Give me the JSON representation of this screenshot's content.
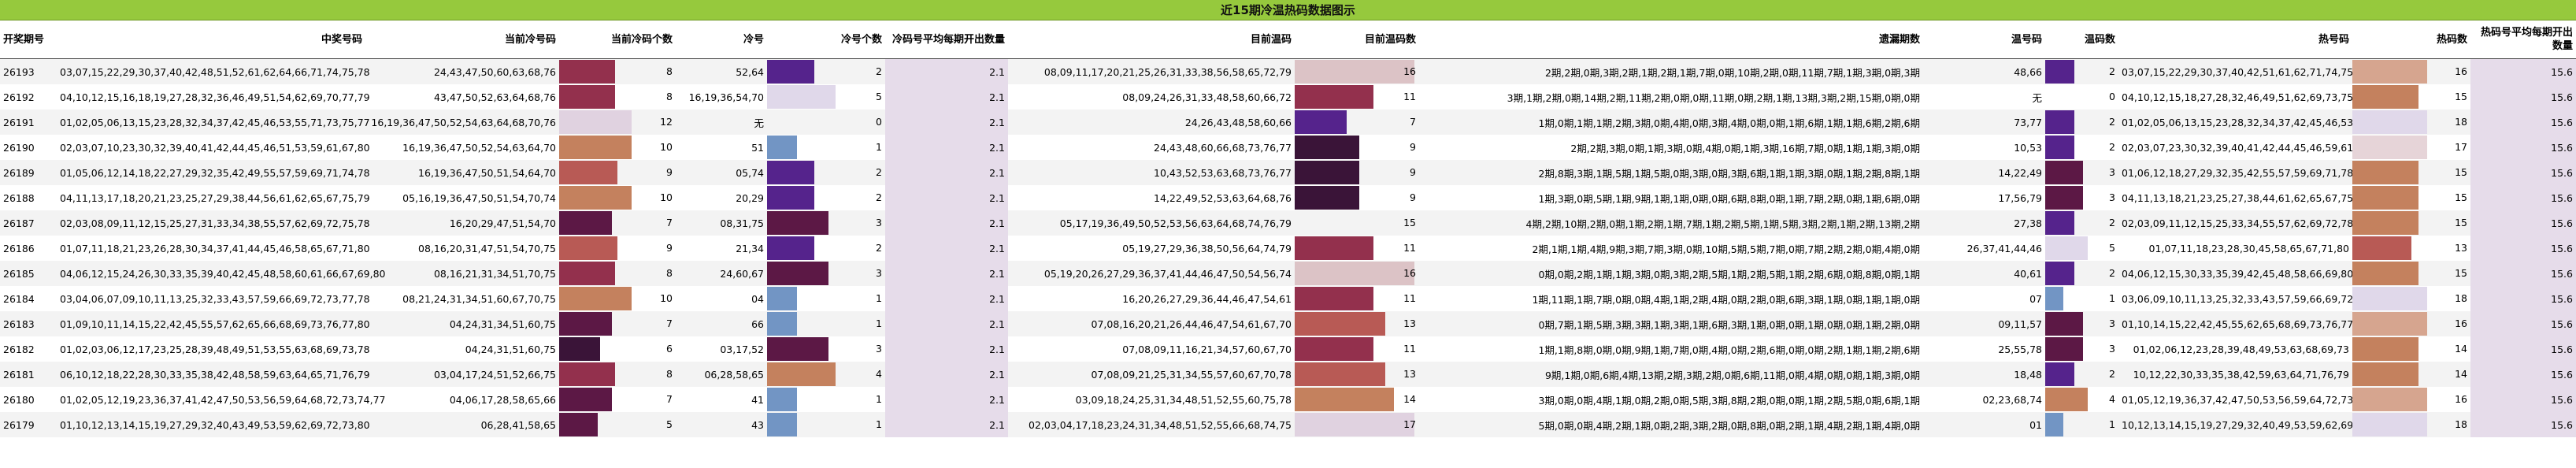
{
  "title": "近15期冷温热码数据图示",
  "headers": [
    "开奖期号",
    "中奖号码",
    "当前冷号码",
    "当前冷码个数",
    "冷号",
    "冷号个数",
    "冷码号平均每期开出数量",
    "目前温码",
    "目前温码数",
    "遗漏期数",
    "温号码",
    "温码数",
    "热号码",
    "热码数",
    "热码号平均每期开出数量"
  ],
  "colors": {
    "title_bg": "#96c93d",
    "avg_bg": "#e6dcea",
    "cold_count_scale": {
      "5": "#5c1845",
      "6": "#3a1438",
      "7": "#5c1845",
      "8": "#93304d",
      "9": "#b85a55",
      "10": "#c4815e",
      "12": "#e0d2e0"
    },
    "cold_num_scale": {
      "0": "#ffffff",
      "1": "#7295c4",
      "2": "#55238c",
      "3": "#5c1845",
      "4": "#c4815e",
      "5": "#e0d8ea"
    },
    "warm_count_scale": {
      "7": "#55238c",
      "8": "#5c1845",
      "9": "#3a1438",
      "10": "#55238c",
      "11": "#93304d",
      "13": "#b85a55",
      "14": "#c4815e",
      "16": "#dcc3c6",
      "17": "#e0d2e0"
    },
    "warm_num_scale": {
      "0": "#ffffff",
      "1": "#7295c4",
      "2": "#55238c",
      "3": "#5c1845",
      "4": "#c4815e",
      "5": "#e0d8ea"
    },
    "hot_count_scale": {
      "13": "#b85a55",
      "14": "#c4815e",
      "15": "#c4815e",
      "16": "#d6a58f",
      "17": "#e6d4d8",
      "18": "#e0d8ea"
    }
  },
  "rows": [
    {
      "period": "26193",
      "winning": "03,07,15,22,29,30,37,40,42,48,51,52,61,62,64,66,71,74,75,78",
      "cold_codes": "24,43,47,50,60,63,68,76",
      "cold_count": 8,
      "cold_nums": "52,64",
      "cold_num_count": 2,
      "cold_avg": "2.1",
      "warm_codes": "08,09,11,17,20,21,25,26,31,33,38,56,58,65,72,79",
      "warm_count": 16,
      "miss": "2期,2期,0期,3期,2期,1期,2期,1期,7期,0期,10期,2期,0期,11期,7期,1期,3期,0期,3期",
      "warm_nums": "48,66",
      "warm_num_count": 2,
      "hot_codes": "03,07,15,22,29,30,37,40,42,51,61,62,71,74,75,78",
      "hot_count": 16,
      "hot_avg": "15.6"
    },
    {
      "period": "26192",
      "winning": "04,10,12,15,16,18,19,27,28,32,36,46,49,51,54,62,69,70,77,79",
      "cold_codes": "43,47,50,52,63,64,68,76",
      "cold_count": 8,
      "cold_nums": "16,19,36,54,70",
      "cold_num_count": 5,
      "cold_avg": "2.1",
      "warm_codes": "08,09,24,26,31,33,48,58,60,66,72",
      "warm_count": 11,
      "miss": "3期,1期,2期,0期,14期,2期,11期,2期,0期,0期,11期,0期,2期,1期,13期,3期,2期,15期,0期,0期",
      "warm_nums": "无",
      "warm_num_count": 0,
      "hot_codes": "04,10,12,15,18,27,28,32,46,49,51,62,69,73,75",
      "hot_count": 15,
      "hot_avg": "15.6"
    },
    {
      "period": "26191",
      "winning": "01,02,05,06,13,15,23,28,32,34,37,42,45,46,53,55,71,73,75,77",
      "cold_codes": "16,19,36,47,50,52,54,63,64,68,70,76",
      "cold_count": 12,
      "cold_nums": "无",
      "cold_num_count": 0,
      "cold_avg": "2.1",
      "warm_codes": "24,26,43,48,58,60,66",
      "warm_count": 7,
      "miss": "1期,0期,1期,1期,2期,3期,0期,4期,0期,3期,4期,0期,0期,1期,6期,1期,1期,6期,2期,6期",
      "warm_nums": "73,77",
      "warm_num_count": 2,
      "hot_codes": "01,02,05,06,13,15,23,28,32,34,37,42,45,46,53,55,71,75",
      "hot_count": 18,
      "hot_avg": "15.6"
    },
    {
      "period": "26190",
      "winning": "02,03,07,10,23,30,32,39,40,41,42,44,45,46,51,53,59,61,67,80",
      "cold_codes": "16,19,36,47,50,52,54,63,64,70",
      "cold_count": 10,
      "cold_nums": "51",
      "cold_num_count": 1,
      "cold_avg": "2.1",
      "warm_codes": "24,43,48,60,66,68,73,76,77",
      "warm_count": 9,
      "miss": "2期,2期,3期,0期,1期,3期,0期,4期,0期,1期,3期,16期,7期,0期,1期,1期,3期,0期",
      "warm_nums": "10,53",
      "warm_num_count": 2,
      "hot_codes": "02,03,07,23,30,32,39,40,41,42,44,45,46,59,61,67,80",
      "hot_count": 17,
      "hot_avg": "15.6"
    },
    {
      "period": "26189",
      "winning": "01,05,06,12,14,18,22,27,29,32,35,42,49,55,57,59,69,71,74,78",
      "cold_codes": "16,19,36,47,50,51,54,64,70",
      "cold_count": 9,
      "cold_nums": "05,74",
      "cold_num_count": 2,
      "cold_avg": "2.1",
      "warm_codes": "10,43,52,53,63,68,73,76,77",
      "warm_count": 9,
      "miss": "2期,8期,3期,1期,5期,1期,5期,0期,3期,0期,3期,6期,1期,1期,3期,0期,1期,2期,8期,1期",
      "warm_nums": "14,22,49",
      "warm_num_count": 3,
      "hot_codes": "01,06,12,18,27,29,32,35,42,55,57,59,69,71,78",
      "hot_count": 15,
      "hot_avg": "15.6"
    },
    {
      "period": "26188",
      "winning": "04,11,13,17,18,20,21,23,25,27,29,38,44,56,61,62,65,67,75,79",
      "cold_codes": "05,16,19,36,47,50,51,54,70,74",
      "cold_count": 10,
      "cold_nums": "20,29",
      "cold_num_count": 2,
      "cold_avg": "2.1",
      "warm_codes": "14,22,49,52,53,63,64,68,76",
      "warm_count": 9,
      "miss": "1期,3期,0期,5期,1期,9期,1期,1期,0期,0期,6期,8期,0期,1期,7期,2期,0期,1期,6期,0期",
      "warm_nums": "17,56,79",
      "warm_num_count": 3,
      "hot_codes": "04,11,13,18,21,23,25,27,38,44,61,62,65,67,75",
      "hot_count": 15,
      "hot_avg": "15.6"
    },
    {
      "period": "26187",
      "winning": "02,03,08,09,11,12,15,25,27,31,33,34,38,55,57,62,69,72,75,78",
      "cold_codes": "16,20,29,47,51,54,70",
      "cold_count": 7,
      "cold_nums": "08,31,75",
      "cold_num_count": 3,
      "cold_avg": "2.1",
      "warm_codes": "05,17,19,36,49,50,52,53,56,63,64,68,74,76,79",
      "warm_count": 15,
      "miss": "4期,2期,10期,2期,0期,1期,2期,1期,7期,1期,2期,5期,1期,5期,3期,2期,1期,2期,13期,2期",
      "warm_nums": "27,38",
      "warm_num_count": 2,
      "hot_codes": "02,03,09,11,12,15,25,33,34,55,57,62,69,72,78",
      "hot_count": 15,
      "hot_avg": "15.6"
    },
    {
      "period": "26186",
      "winning": "01,07,11,18,21,23,26,28,30,34,37,41,44,45,46,58,65,67,71,80",
      "cold_codes": "08,16,20,31,47,51,54,70,75",
      "cold_count": 9,
      "cold_nums": "21,34",
      "cold_num_count": 2,
      "cold_avg": "2.1",
      "warm_codes": "05,19,27,29,36,38,50,56,64,74,79",
      "warm_count": 11,
      "miss": "2期,1期,1期,4期,9期,3期,7期,3期,0期,10期,5期,5期,7期,0期,7期,2期,2期,0期,4期,0期",
      "warm_nums": "26,37,41,44,46",
      "warm_num_count": 5,
      "hot_codes": "01,07,11,18,23,28,30,45,58,65,67,71,80",
      "hot_count": 13,
      "hot_avg": "15.6"
    },
    {
      "period": "26185",
      "winning": "04,06,12,15,24,26,30,33,35,39,40,42,45,48,58,60,61,66,67,69,80",
      "cold_codes": "08,16,21,31,34,51,70,75",
      "cold_count": 8,
      "cold_nums": "24,60,67",
      "cold_num_count": 3,
      "cold_avg": "2.1",
      "warm_codes": "05,19,20,26,27,29,36,37,41,44,46,47,50,54,56,74",
      "warm_count": 16,
      "miss": "0期,0期,2期,1期,1期,3期,0期,3期,2期,5期,1期,2期,5期,1期,2期,6期,0期,8期,0期,1期",
      "warm_nums": "40,61",
      "warm_num_count": 2,
      "hot_codes": "04,06,12,15,30,33,35,39,42,45,48,58,66,69,80",
      "hot_count": 15,
      "hot_avg": "15.6"
    },
    {
      "period": "26184",
      "winning": "03,04,06,07,09,10,11,13,25,32,33,43,57,59,66,69,72,73,77,78",
      "cold_codes": "08,21,24,31,34,51,60,67,70,75",
      "cold_count": 10,
      "cold_nums": "04",
      "cold_num_count": 1,
      "cold_avg": "2.1",
      "warm_codes": "16,20,26,27,29,36,44,46,47,54,61",
      "warm_count": 11,
      "miss": "1期,11期,1期,7期,0期,0期,4期,1期,2期,4期,0期,2期,0期,6期,3期,1期,0期,1期,1期,0期",
      "warm_nums": "07",
      "warm_num_count": 1,
      "hot_codes": "03,06,09,10,11,13,25,32,33,43,57,59,66,69,72,73,77,78",
      "hot_count": 18,
      "hot_avg": "15.6"
    },
    {
      "period": "26183",
      "winning": "01,09,10,11,14,15,22,42,45,55,57,62,65,66,68,69,73,76,77,80",
      "cold_codes": "04,24,31,34,51,60,75",
      "cold_count": 7,
      "cold_nums": "66",
      "cold_num_count": 1,
      "cold_avg": "2.1",
      "warm_codes": "07,08,16,20,21,26,44,46,47,54,61,67,70",
      "warm_count": 13,
      "miss": "0期,7期,1期,5期,3期,3期,1期,3期,1期,6期,3期,1期,0期,0期,1期,0期,0期,1期,2期,0期",
      "warm_nums": "09,11,57",
      "warm_num_count": 3,
      "hot_codes": "01,10,14,15,22,42,45,55,62,65,68,69,73,76,77,80",
      "hot_count": 16,
      "hot_avg": "15.6"
    },
    {
      "period": "26182",
      "winning": "01,02,03,06,12,17,23,25,28,39,48,49,51,53,55,63,68,69,73,78",
      "cold_codes": "04,24,31,51,60,75",
      "cold_count": 6,
      "cold_nums": "03,17,52",
      "cold_num_count": 3,
      "cold_avg": "2.1",
      "warm_codes": "07,08,09,11,16,21,34,57,60,67,70",
      "warm_count": 11,
      "miss": "1期,1期,8期,0期,0期,9期,1期,7期,0期,4期,0期,2期,6期,0期,0期,2期,1期,1期,2期,6期",
      "warm_nums": "25,55,78",
      "warm_num_count": 3,
      "hot_codes": "01,02,06,12,23,28,39,48,49,53,63,68,69,73",
      "hot_count": 14,
      "hot_avg": "15.6"
    },
    {
      "period": "26181",
      "winning": "06,10,12,18,22,28,30,33,35,38,42,48,58,59,63,64,65,71,76,79",
      "cold_codes": "03,04,17,24,51,52,66,75",
      "cold_count": 8,
      "cold_nums": "06,28,58,65",
      "cold_num_count": 4,
      "cold_avg": "2.1",
      "warm_codes": "07,08,09,21,25,31,34,55,57,60,67,70,78",
      "warm_count": 13,
      "miss": "9期,1期,0期,6期,4期,13期,2期,3期,2期,0期,6期,11期,0期,4期,0期,0期,1期,3期,0期",
      "warm_nums": "18,48",
      "warm_num_count": 2,
      "hot_codes": "10,12,22,30,33,35,38,42,59,63,64,71,76,79",
      "hot_count": 14,
      "hot_avg": "15.6"
    },
    {
      "period": "26180",
      "winning": "01,02,05,12,19,23,36,37,41,42,47,50,53,56,59,64,68,72,73,74,77",
      "cold_codes": "04,06,17,28,58,65,66",
      "cold_count": 7,
      "cold_nums": "41",
      "cold_num_count": 1,
      "cold_avg": "2.1",
      "warm_codes": "03,09,18,24,25,31,34,48,51,52,55,60,75,78",
      "warm_count": 14,
      "miss": "3期,0期,0期,4期,1期,0期,2期,0期,5期,3期,8期,2期,0期,0期,1期,2期,5期,0期,6期,1期",
      "warm_nums": "02,23,68,74",
      "warm_num_count": 4,
      "hot_codes": "01,05,12,19,36,37,42,47,50,53,56,59,64,72,73,77",
      "hot_count": 16,
      "hot_avg": "15.6"
    },
    {
      "period": "26179",
      "winning": "01,10,12,13,14,15,19,27,29,32,40,43,49,53,59,62,69,72,73,80",
      "cold_codes": "06,28,41,58,65",
      "cold_count": 5,
      "cold_nums": "43",
      "cold_num_count": 1,
      "cold_avg": "2.1",
      "warm_codes": "02,03,04,17,18,23,24,31,34,48,51,52,55,66,68,74,75",
      "warm_count": 17,
      "miss": "5期,0期,0期,4期,2期,1期,0期,2期,3期,2期,0期,8期,0期,2期,1期,4期,2期,1期,4期,0期",
      "warm_nums": "01",
      "warm_num_count": 1,
      "hot_codes": "10,12,13,14,15,19,27,29,32,40,49,53,59,62,69,72,73,80",
      "hot_count": 18,
      "hot_avg": "15.6"
    }
  ]
}
